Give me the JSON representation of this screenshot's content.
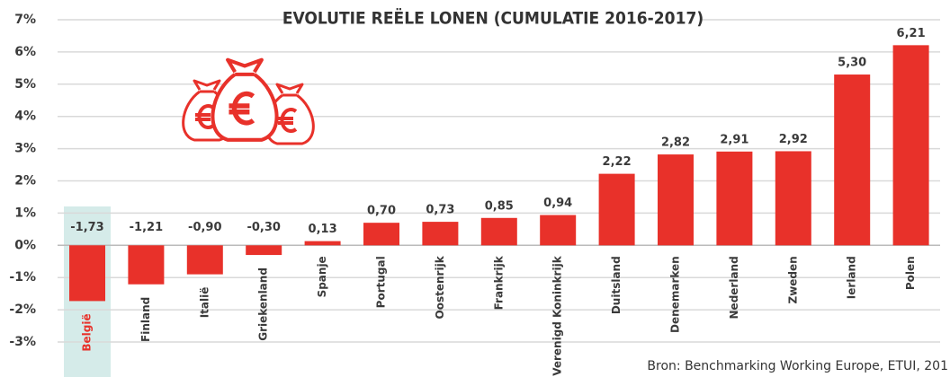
{
  "chart_data": {
    "type": "bar",
    "title": "EVOLUTIE REËLE LONEN (CUMULATIE 2016-2017)",
    "source": "Bron: Benchmarking Working Europe, ETUI, 201",
    "categories": [
      "België",
      "Finland",
      "Italië",
      "Griekenland",
      "Spanje",
      "Portugal",
      "Oostenrijk",
      "Frankrijk",
      "Verenigd Koninkrijk",
      "Duitsland",
      "Denemarken",
      "Nederland",
      "Zweden",
      "Ierland",
      "Polen"
    ],
    "values": [
      -1.73,
      -1.21,
      -0.9,
      -0.3,
      0.13,
      0.7,
      0.73,
      0.85,
      0.94,
      2.22,
      2.82,
      2.91,
      2.92,
      5.3,
      6.21
    ],
    "value_labels": [
      "-1,73",
      "-1,21",
      "-0,90",
      "-0,30",
      "0,13",
      "0,70",
      "0,73",
      "0,85",
      "0,94",
      "2,22",
      "2,82",
      "2,91",
      "2,92",
      "5,30",
      "6,21"
    ],
    "color": "#e8312a",
    "highlight": "België",
    "highlight_color": "#d5ebe9",
    "highlight_label_color": "#e8312a",
    "ylim": [
      -3,
      7
    ],
    "yticks": [
      {
        "value": -3,
        "label": "-3%"
      },
      {
        "value": -2,
        "label": "-2%"
      },
      {
        "value": -1,
        "label": "-1%"
      },
      {
        "value": 0,
        "label": "0%"
      },
      {
        "value": 1,
        "label": "1%"
      },
      {
        "value": 2,
        "label": "2%"
      },
      {
        "value": 3,
        "label": "3%"
      },
      {
        "value": 4,
        "label": "4%"
      },
      {
        "value": 5,
        "label": "5%"
      },
      {
        "value": 6,
        "label": "6%"
      },
      {
        "value": 7,
        "label": "7%"
      }
    ],
    "grid": true
  }
}
